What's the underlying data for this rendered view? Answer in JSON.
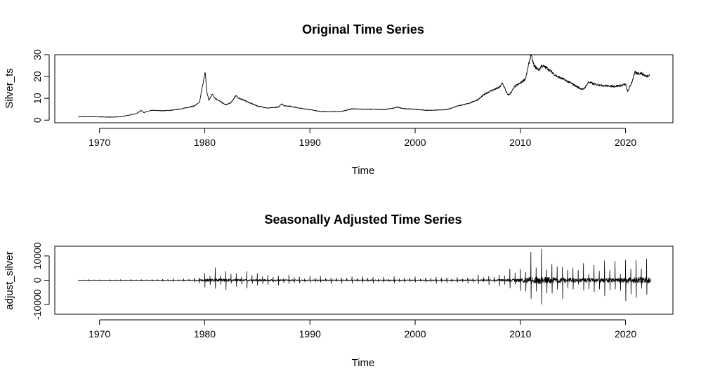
{
  "chart_data": [
    {
      "type": "line",
      "title": "Original Time Series",
      "xlabel": "Time",
      "ylabel": "Silver_ts",
      "xlim": [
        1965.75,
        2024.5
      ],
      "ylim": [
        -1.2,
        30
      ],
      "x_ticks": [
        1970,
        1980,
        1990,
        2000,
        2010,
        2020
      ],
      "x_tick_labels": [
        "1970",
        "1980",
        "1990",
        "2000",
        "2010",
        "2020"
      ],
      "y_ticks": [
        0,
        10,
        20,
        30
      ],
      "y_tick_labels": [
        "0",
        "10",
        "20",
        "30"
      ],
      "grid": false,
      "series": [
        {
          "x": [
            1968.0,
            1969.0,
            1970.0,
            1971.0,
            1972.0,
            1973.0,
            1973.5,
            1974.0,
            1974.2,
            1975.0,
            1976.0,
            1977.0,
            1978.0,
            1979.0,
            1979.5,
            1979.8,
            1980.05,
            1980.2,
            1980.4,
            1980.7,
            1981.0,
            1981.5,
            1982.0,
            1982.5,
            1983.0,
            1983.2,
            1983.6,
            1984.0,
            1985.0,
            1986.0,
            1987.0,
            1987.3,
            1987.6,
            1988.0,
            1989.0,
            1990.0,
            1991.0,
            1992.0,
            1993.0,
            1994.0,
            1995.0,
            1996.0,
            1997.0,
            1998.0,
            1998.3,
            1999.0,
            2000.0,
            2001.0,
            2002.0,
            2003.0,
            2004.0,
            2004.5,
            2005.0,
            2006.0,
            2006.5,
            2007.0,
            2008.0,
            2008.3,
            2008.8,
            2009.0,
            2009.5,
            2010.0,
            2010.5,
            2011.0,
            2011.3,
            2011.5,
            2011.8,
            2012.0,
            2012.5,
            2013.0,
            2013.5,
            2014.0,
            2015.0,
            2015.5,
            2016.0,
            2016.5,
            2017.0,
            2018.0,
            2019.0,
            2019.7,
            2020.0,
            2020.2,
            2020.6,
            2020.9,
            2021.0,
            2021.5,
            2022.0,
            2022.3
          ],
          "y": [
            1.5,
            1.6,
            1.5,
            1.4,
            1.5,
            2.5,
            3.0,
            4.5,
            3.5,
            4.5,
            4.3,
            4.6,
            5.4,
            6.5,
            8.0,
            16.0,
            22.0,
            13.0,
            9.0,
            12.0,
            10.0,
            8.5,
            7.0,
            8.0,
            11.5,
            10.0,
            9.5,
            8.5,
            6.5,
            5.5,
            6.0,
            7.5,
            6.5,
            6.5,
            5.5,
            4.8,
            4.0,
            3.9,
            4.0,
            5.2,
            5.0,
            5.0,
            4.8,
            5.5,
            6.0,
            5.2,
            5.0,
            4.5,
            4.6,
            4.8,
            6.5,
            7.0,
            7.5,
            9.5,
            11.5,
            13.0,
            15.0,
            17.0,
            11.5,
            12.0,
            15.5,
            17.0,
            19.0,
            30.0,
            25.0,
            24.0,
            23.0,
            25.0,
            24.0,
            22.0,
            20.0,
            19.0,
            16.5,
            15.0,
            14.0,
            17.5,
            16.5,
            15.8,
            15.5,
            16.0,
            16.5,
            13.0,
            17.5,
            22.0,
            21.5,
            21.5,
            20.0,
            21.0
          ]
        }
      ]
    },
    {
      "type": "line",
      "title": "Seasonally Adjusted Time Series",
      "xlabel": "Time",
      "ylabel": "adjust_silver",
      "xlim": [
        1965.75,
        2024.5
      ],
      "ylim": [
        -14000,
        14000
      ],
      "x_ticks": [
        1970,
        1980,
        1990,
        2000,
        2010,
        2020
      ],
      "x_tick_labels": [
        "1970",
        "1980",
        "1990",
        "2000",
        "2010",
        "2020"
      ],
      "y_ticks": [
        -10000,
        0,
        10000
      ],
      "y_tick_labels": [
        "-10000",
        "0",
        "10000"
      ],
      "grid": false,
      "series": [
        {
          "x_start": 1968.0,
          "x_end": 2022.4,
          "amplitude_years": [
            1968,
            1974,
            1979,
            1980,
            1981,
            1985,
            1990,
            2000,
            2005,
            2008,
            2010,
            2011,
            2012,
            2013,
            2015,
            2017,
            2019,
            2020,
            2021,
            2022.4
          ],
          "amplitude_values": [
            300,
            400,
            900,
            4500,
            5500,
            3500,
            1800,
            1500,
            1800,
            3000,
            7000,
            12000,
            13500,
            11000,
            8000,
            9000,
            8000,
            11000,
            12000,
            10000
          ]
        }
      ]
    }
  ]
}
